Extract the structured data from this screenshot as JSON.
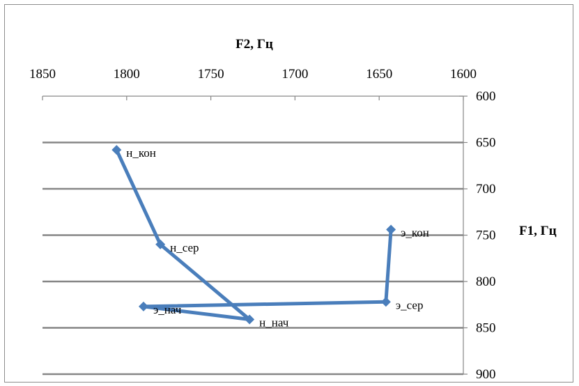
{
  "chart_data": {
    "type": "line",
    "x_axis": {
      "title": "F2, Гц",
      "min": 1600,
      "max": 1850,
      "reversed": true,
      "position": "top",
      "ticks": [
        1850,
        1800,
        1750,
        1700,
        1650,
        1600
      ]
    },
    "y_axis": {
      "title": "F1, Гц",
      "min": 600,
      "max": 900,
      "reversed": true,
      "position": "right",
      "ticks": [
        600,
        650,
        700,
        750,
        800,
        850,
        900
      ]
    },
    "grid": "horizontal",
    "series": [
      {
        "color": "#4a7ebb",
        "points": [
          {
            "label": "э_кон",
            "x": 1643,
            "y": 744
          },
          {
            "label": "э_сер",
            "x": 1646,
            "y": 822
          },
          {
            "label": "э_нач",
            "x": 1790,
            "y": 827
          },
          {
            "label": "н_нач",
            "x": 1727,
            "y": 841
          },
          {
            "label": "н_сер",
            "x": 1780,
            "y": 760
          },
          {
            "label": "н_кон",
            "x": 1806,
            "y": 658
          }
        ]
      }
    ]
  }
}
